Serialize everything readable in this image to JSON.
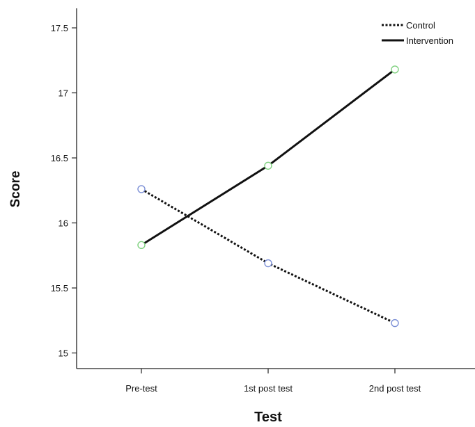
{
  "chart_data": {
    "type": "line",
    "title": "",
    "xlabel": "Test",
    "ylabel": "Score",
    "categories": [
      "Pre-test",
      "1st post test",
      "2nd post test"
    ],
    "ylim": [
      14.88,
      17.65
    ],
    "yticks": [
      15,
      15.5,
      16,
      16.5,
      17,
      17.5
    ],
    "yticklabels": [
      "15",
      "15.5",
      "16",
      "16.5",
      "17",
      "17.5"
    ],
    "grid": false,
    "legend_position": "top-right",
    "series": [
      {
        "name": "Control",
        "values": [
          16.26,
          15.69,
          15.23
        ],
        "line_style": "dotted",
        "color": "#111111",
        "marker_color": "#7b8fd6"
      },
      {
        "name": "Intervention",
        "values": [
          15.83,
          16.44,
          17.18
        ],
        "line_style": "solid",
        "color": "#111111",
        "marker_color": "#7fd17f"
      }
    ]
  }
}
